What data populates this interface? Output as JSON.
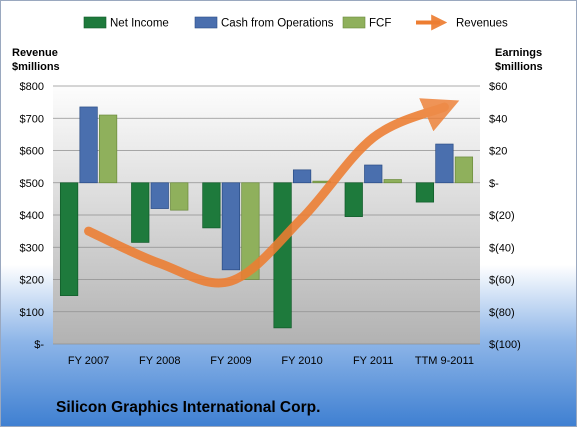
{
  "chart_data": {
    "type": "bar",
    "company": "Silicon Graphics International Corp.",
    "categories": [
      "FY 2007",
      "FY 2008",
      "FY 2009",
      "FY 2010",
      "FY 2011",
      "TTM 9-2011"
    ],
    "left_axis": {
      "title_line1": "Revenue",
      "title_line2": "$millions",
      "ylim": [
        0,
        800
      ],
      "ticks": [
        0,
        100,
        200,
        300,
        400,
        500,
        600,
        700,
        800
      ],
      "tick_labels": [
        "$-",
        "$100",
        "$200",
        "$300",
        "$400",
        "$500",
        "$600",
        "$700",
        "$800"
      ]
    },
    "right_axis": {
      "title_line1": "Earnings",
      "title_line2": "$millions",
      "ylim": [
        -100,
        60
      ],
      "ticks": [
        -100,
        -80,
        -60,
        -40,
        -20,
        0,
        20,
        40,
        60
      ],
      "tick_labels": [
        "$(100)",
        "$(80)",
        "$(60)",
        "$(40)",
        "$(20)",
        "$-",
        "$20",
        "$40",
        "$60"
      ]
    },
    "series": [
      {
        "name": "Net Income",
        "axis": "right",
        "kind": "bar",
        "color": "#1e7a3c",
        "values": [
          -70,
          -37,
          -28,
          -90,
          -21,
          -12
        ]
      },
      {
        "name": "Cash from Operations",
        "axis": "right",
        "kind": "bar",
        "color": "#4a6fae",
        "values": [
          47,
          -16,
          -54,
          8,
          11,
          24
        ]
      },
      {
        "name": "FCF",
        "axis": "right",
        "kind": "bar",
        "color": "#8fb05c",
        "values": [
          42,
          -17,
          -60,
          1,
          2,
          16
        ]
      },
      {
        "name": "Revenues",
        "axis": "left",
        "kind": "line",
        "color": "#ed7d31",
        "values": [
          350,
          250,
          195,
          390,
          640,
          735
        ]
      }
    ],
    "grid": true,
    "legend_position": "top"
  }
}
